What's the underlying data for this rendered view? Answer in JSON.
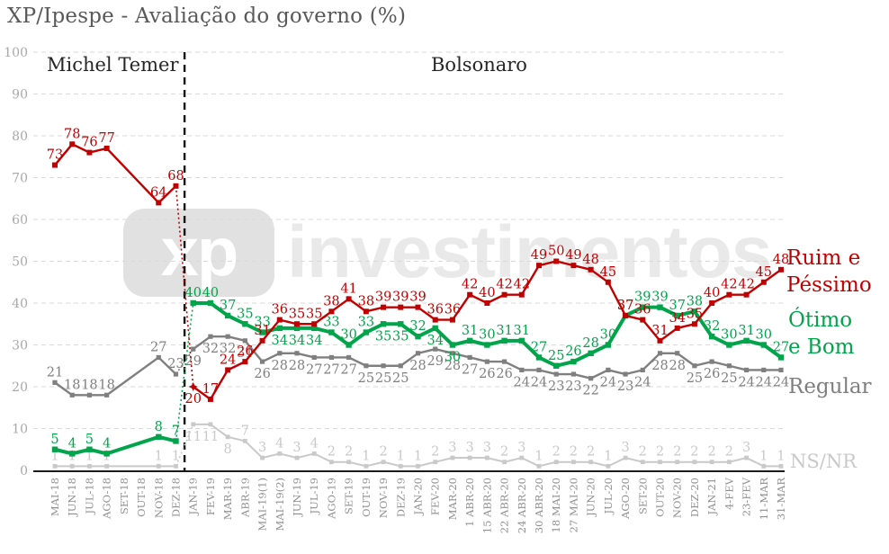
{
  "title": "XP/Ipespe - Avaliação do governo (%)",
  "annotations": {
    "left_period": "Michel Temer",
    "right_period": "Bolsonaro"
  },
  "watermark": {
    "logo": "xp",
    "text": "investimentos"
  },
  "legend": [
    {
      "label": "Ruim e Péssimo",
      "color": "#c00000"
    },
    {
      "label": "Ótimo e Bom",
      "color": "#00a44a"
    },
    {
      "label": "Regular",
      "color": "#7f7f7f"
    },
    {
      "label": "NS/NR",
      "color": "#c9c9c9"
    }
  ],
  "chart_data": {
    "type": "line",
    "title": "XP/Ipespe - Avaliação do governo (%)",
    "xlabel": "",
    "ylabel": "",
    "ylim": [
      0,
      100
    ],
    "yticks": [
      0,
      10,
      20,
      30,
      40,
      50,
      60,
      70,
      80,
      90,
      100
    ],
    "grid": "dashed-horizontal",
    "legend_position": "right",
    "divider_after_index": 7,
    "categories": [
      "MAI-18",
      "JUN-18",
      "JUL-18",
      "AGO-18",
      "SET-18",
      "OUT-18",
      "NOV-18",
      "DEZ-18",
      "JAN-19",
      "FEV-19",
      "MAR-19",
      "ABR-19",
      "MAI-19(1)",
      "MAI-19(2)",
      "JUN-19",
      "JUL-19",
      "AGO-19",
      "SET-19",
      "OUT-19",
      "NOV-19",
      "DEZ-19",
      "JAN-20",
      "FEV-20",
      "MAR-20",
      "1 ABR-20",
      "15 ABR-20",
      "22 ABR-20",
      "24 ABR-20",
      "30 ABR-20",
      "18 MAI-20",
      "27 MAI-20",
      "JUN-20",
      "JUL-20",
      "AGO-20",
      "SET-20",
      "OUT-20",
      "NOV-20",
      "DEZ-20",
      "JAN-21",
      "4-FEV",
      "23-FEV",
      "11-MAR",
      "31-MAR"
    ],
    "series": [
      {
        "name": "Ruim e Péssimo",
        "color": "#c00000",
        "values": [
          73,
          78,
          76,
          77,
          null,
          null,
          64,
          68,
          20,
          17,
          24,
          26,
          31,
          36,
          35,
          35,
          38,
          41,
          38,
          39,
          39,
          39,
          36,
          36,
          42,
          40,
          42,
          42,
          49,
          50,
          49,
          48,
          45,
          37,
          36,
          31,
          34,
          35,
          40,
          42,
          42,
          45,
          48
        ]
      },
      {
        "name": "Ótimo e Bom",
        "color": "#00a44a",
        "values": [
          5,
          4,
          5,
          4,
          null,
          null,
          8,
          7,
          40,
          40,
          37,
          35,
          33,
          34,
          34,
          34,
          33,
          30,
          33,
          35,
          35,
          32,
          34,
          30,
          31,
          30,
          31,
          31,
          27,
          25,
          26,
          28,
          30,
          37,
          39,
          39,
          37,
          38,
          32,
          30,
          31,
          30,
          27
        ]
      },
      {
        "name": "Regular",
        "color": "#7f7f7f",
        "values": [
          21,
          18,
          18,
          18,
          null,
          null,
          27,
          23,
          29,
          32,
          32,
          31,
          26,
          28,
          28,
          27,
          27,
          27,
          25,
          25,
          25,
          28,
          29,
          28,
          27,
          26,
          26,
          24,
          24,
          23,
          23,
          22,
          24,
          23,
          24,
          28,
          28,
          25,
          26,
          25,
          24,
          24,
          24
        ]
      },
      {
        "name": "NS/NR",
        "color": "#c9c9c9",
        "values": [
          1,
          1,
          1,
          1,
          null,
          null,
          1,
          1,
          11,
          11,
          8,
          7,
          3,
          4,
          3,
          4,
          2,
          2,
          1,
          2,
          1,
          1,
          2,
          3,
          3,
          3,
          2,
          3,
          1,
          2,
          2,
          2,
          1,
          3,
          2,
          2,
          2,
          2,
          2,
          2,
          3,
          1,
          1
        ]
      }
    ]
  }
}
